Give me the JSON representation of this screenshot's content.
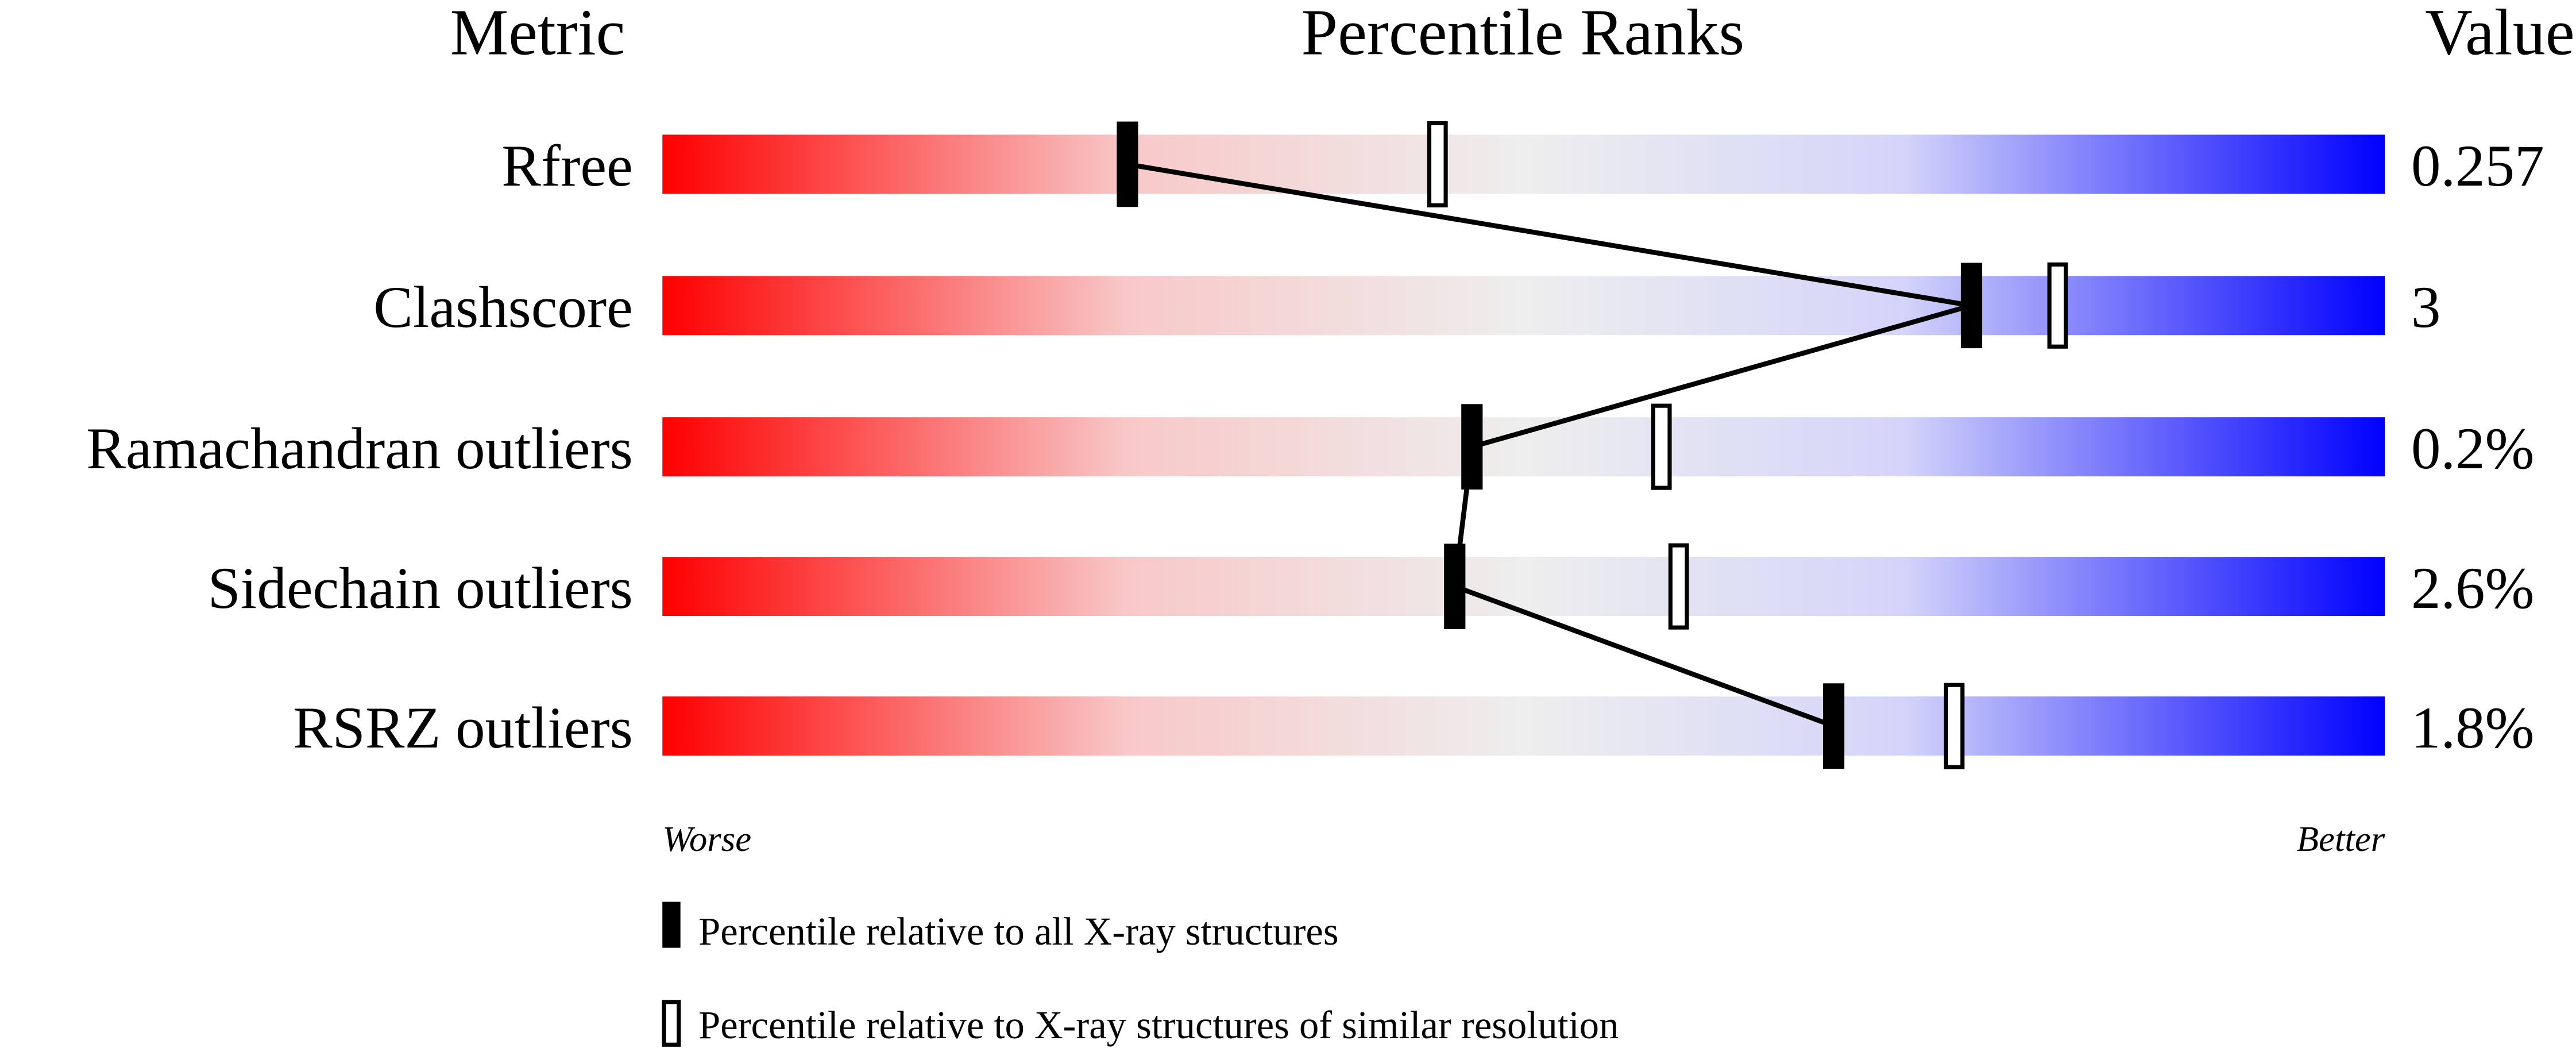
{
  "chart_data": {
    "type": "percentile-bar",
    "headers": {
      "metric": "Metric",
      "ranks": "Percentile Ranks",
      "value": "Value"
    },
    "xlim": [
      0,
      100
    ],
    "axis_labels": {
      "left": "Worse",
      "right": "Better"
    },
    "gradient_colors": [
      "#ff0000",
      "#f8c8c8",
      "#eeeeee",
      "#d4d4fa",
      "#0000ff"
    ],
    "rows": [
      {
        "metric": "Rfree",
        "value": "0.257",
        "percentile_all": 27,
        "percentile_similar": 45
      },
      {
        "metric": "Clashscore",
        "value": "3",
        "percentile_all": 76,
        "percentile_similar": 81
      },
      {
        "metric": "Ramachandran outliers",
        "value": "0.2%",
        "percentile_all": 47,
        "percentile_similar": 58
      },
      {
        "metric": "Sidechain outliers",
        "value": "2.6%",
        "percentile_all": 46,
        "percentile_similar": 59
      },
      {
        "metric": "RSRZ outliers",
        "value": "1.8%",
        "percentile_all": 68,
        "percentile_similar": 75
      }
    ],
    "legend": [
      {
        "style": "filled",
        "label": "Percentile relative to all X-ray structures"
      },
      {
        "style": "hollow",
        "label": "Percentile relative to X-ray structures of similar resolution"
      }
    ]
  }
}
